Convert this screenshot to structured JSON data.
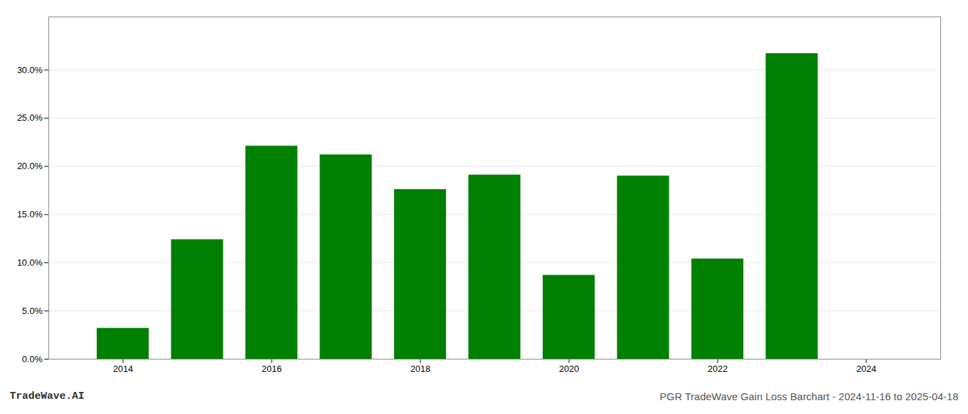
{
  "chart_data": {
    "type": "bar",
    "title": "PGR TradeWave Gain Loss Barchart - 2024-11-16 to 2025-04-18",
    "annotations": [
      "TradeWave.AI"
    ],
    "x": [
      2014,
      2015,
      2016,
      2017,
      2018,
      2019,
      2020,
      2021,
      2022,
      2023
    ],
    "values": [
      0.032,
      0.124,
      0.221,
      0.212,
      0.176,
      0.191,
      0.087,
      0.19,
      0.104,
      0.317
    ],
    "color": "#008000",
    "xlim": [
      2013,
      2025
    ],
    "xticks": [
      2014,
      2016,
      2018,
      2020,
      2022,
      2024
    ],
    "ylim": [
      0.0,
      0.355
    ],
    "yticks": [
      {
        "value": 0.0,
        "label": "0.0%"
      },
      {
        "value": 0.05,
        "label": "5.0%"
      },
      {
        "value": 0.1,
        "label": "10.0%"
      },
      {
        "value": 0.15,
        "label": "15.0%"
      },
      {
        "value": 0.2,
        "label": "20.0%"
      },
      {
        "value": 0.25,
        "label": "25.0%"
      },
      {
        "value": 0.3,
        "label": "30.0%"
      }
    ],
    "grid": true
  }
}
